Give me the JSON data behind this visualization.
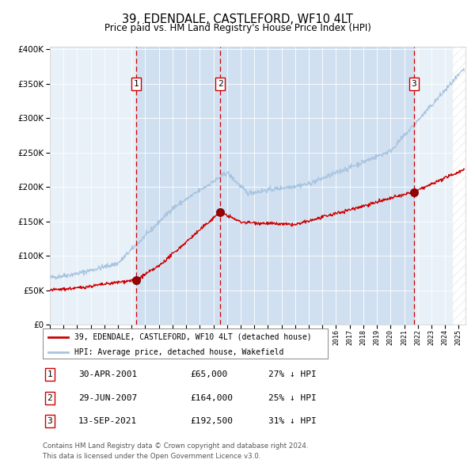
{
  "title": "39, EDENDALE, CASTLEFORD, WF10 4LT",
  "subtitle": "Price paid vs. HM Land Registry's House Price Index (HPI)",
  "legend_line1": "39, EDENDALE, CASTLEFORD, WF10 4LT (detached house)",
  "legend_line2": "HPI: Average price, detached house, Wakefield",
  "footer1": "Contains HM Land Registry data © Crown copyright and database right 2024.",
  "footer2": "This data is licensed under the Open Government Licence v3.0.",
  "table": [
    {
      "num": "1",
      "date": "30-APR-2001",
      "price": "£65,000",
      "hpi": "27% ↓ HPI"
    },
    {
      "num": "2",
      "date": "29-JUN-2007",
      "price": "£164,000",
      "hpi": "25% ↓ HPI"
    },
    {
      "num": "3",
      "date": "13-SEP-2021",
      "price": "£192,500",
      "hpi": "31% ↓ HPI"
    }
  ],
  "sale_dates_year": [
    2001.33,
    2007.5,
    2021.71
  ],
  "sale_prices": [
    65000,
    164000,
    192500
  ],
  "hpi_color": "#a8c4e0",
  "price_color": "#cc0000",
  "vline_color": "#cc0000",
  "bg_color": "#e8f0f8",
  "shade_color": "#d0e0f0",
  "ylim_max": 400000,
  "xlim_start": 1995.0,
  "xlim_end": 2025.5,
  "yticks": [
    0,
    50000,
    100000,
    150000,
    200000,
    250000,
    300000,
    350000,
    400000
  ]
}
